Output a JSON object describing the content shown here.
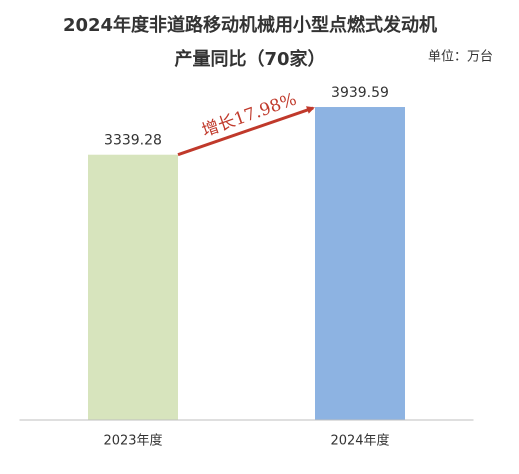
{
  "chart_data": {
    "type": "bar",
    "title": "2024年度非道路移动机械用小型点燃式发动机",
    "subtitle": "产量同比（70家）",
    "unit_label": "单位：万台",
    "annotation": "增长17.98%",
    "categories": [
      "2023年度",
      "2024年度"
    ],
    "values": [
      3339.28,
      3939.59
    ],
    "colors": [
      "#d7e4bd",
      "#8db3e2"
    ],
    "ylim": [
      0,
      4500
    ]
  }
}
